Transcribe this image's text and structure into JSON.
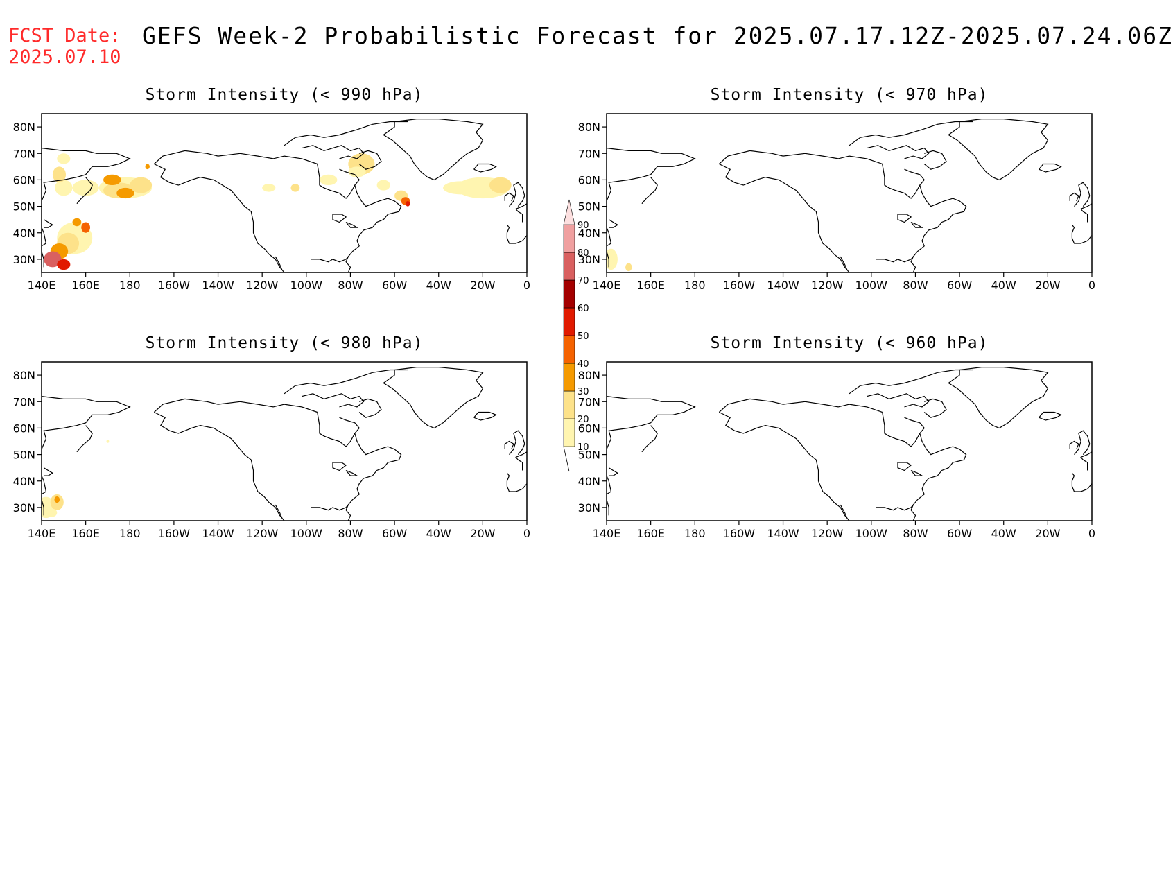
{
  "header": {
    "fcst_line1": "FCST Date:",
    "fcst_line2": "2025.07.10",
    "title": "GEFS Week-2 Probabilistic Forecast for 2025.07.17.12Z-2025.07.24.06Z"
  },
  "axes": {
    "lat_ticks": [
      "80N",
      "70N",
      "60N",
      "50N",
      "40N",
      "30N"
    ],
    "lon_ticks": [
      "140E",
      "160E",
      "180",
      "160W",
      "140W",
      "120W",
      "100W",
      "80W",
      "60W",
      "40W",
      "20W",
      "0"
    ]
  },
  "panels": [
    {
      "title": "Storm Intensity (< 990 hPa)",
      "shading": "heavy"
    },
    {
      "title": "Storm Intensity (< 970 hPa)",
      "shading": "light"
    },
    {
      "title": "Storm Intensity (< 980 hPa)",
      "shading": "medium"
    },
    {
      "title": "Storm Intensity (< 960 hPa)",
      "shading": "none"
    }
  ],
  "colorbar": {
    "labels": [
      "10",
      "20",
      "30",
      "40",
      "50",
      "60",
      "70",
      "80",
      "90"
    ],
    "colors": [
      "#fff5b0",
      "#fde28a",
      "#f59a00",
      "#f56200",
      "#e11a00",
      "#a40000",
      "#d96060",
      "#f0a0a0",
      "#fde0e0"
    ]
  },
  "map_colors": {
    "coast": "#000000",
    "p10": "#fff5b0",
    "p20": "#fde28a",
    "p30": "#f59a00",
    "p40": "#f56200",
    "p50": "#e11a00",
    "p60": "#a40000",
    "p70": "#d96060",
    "p80": "#f0a0a0"
  }
}
